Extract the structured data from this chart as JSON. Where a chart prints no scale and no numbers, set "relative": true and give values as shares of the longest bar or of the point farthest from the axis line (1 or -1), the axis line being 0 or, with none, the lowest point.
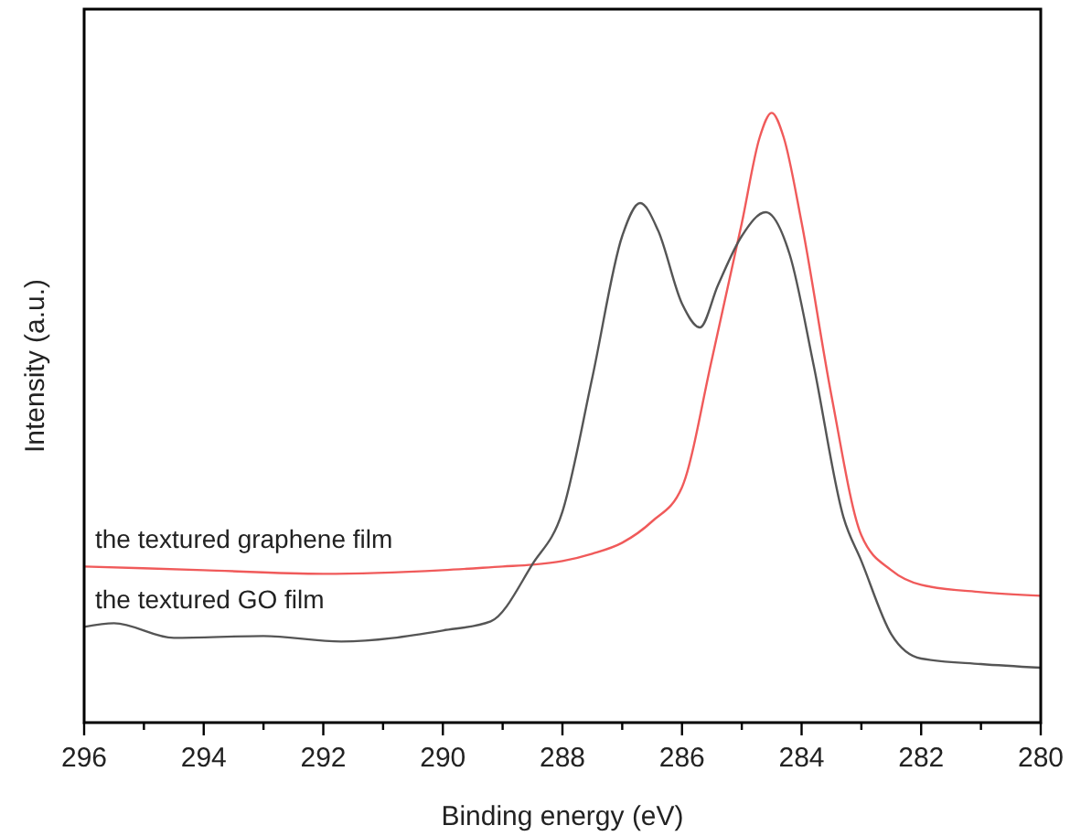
{
  "chart_data": {
    "type": "line",
    "relative": true,
    "xlabel": "Binding energy (eV)",
    "ylabel": "Intensity (a.u.)",
    "xlim": [
      296,
      280
    ],
    "xticks": [
      296,
      {
        "value": 295,
        "label": null
      },
      294,
      {
        "value": 293,
        "label": null
      },
      292,
      {
        "value": 291,
        "label": null
      },
      290,
      {
        "value": 289,
        "label": null
      },
      288,
      {
        "value": 287,
        "label": null
      },
      286,
      {
        "value": 285,
        "label": null
      },
      284,
      {
        "value": 283,
        "label": null
      },
      282,
      {
        "value": 281,
        "label": null
      },
      280
    ],
    "tick_labels": "x",
    "line_style": "solid",
    "series": [
      {
        "name": "the textured graphene film",
        "color": "#f05a5a",
        "x": [
          296,
          294,
          292,
          290,
          289,
          288.5,
          288,
          287.5,
          287,
          286.5,
          286,
          285.5,
          285,
          284.7,
          284.5,
          284.3,
          284,
          283.5,
          283,
          282.5,
          282,
          281,
          280
        ],
        "values": [
          0.256,
          0.25,
          0.244,
          0.25,
          0.256,
          0.259,
          0.265,
          0.277,
          0.295,
          0.33,
          0.386,
          0.596,
          0.819,
          0.96,
          1.0,
          0.96,
          0.82,
          0.536,
          0.307,
          0.25,
          0.226,
          0.214,
          0.208
        ]
      },
      {
        "name": "the textured GO film",
        "color": "#555555",
        "x": [
          296,
          295.5,
          294.5,
          293,
          291.7,
          290,
          289.2,
          288.5,
          288,
          287.5,
          287,
          286.7,
          286.4,
          286,
          285.7,
          285.4,
          285,
          284.6,
          284.2,
          283.8,
          283.3,
          283,
          282.5,
          282,
          281,
          280
        ],
        "values": [
          0.157,
          0.163,
          0.139,
          0.142,
          0.133,
          0.151,
          0.166,
          0.26,
          0.346,
          0.566,
          0.798,
          0.852,
          0.807,
          0.687,
          0.648,
          0.717,
          0.798,
          0.837,
          0.768,
          0.587,
          0.337,
          0.265,
          0.145,
          0.105,
          0.096,
          0.09
        ]
      }
    ]
  }
}
